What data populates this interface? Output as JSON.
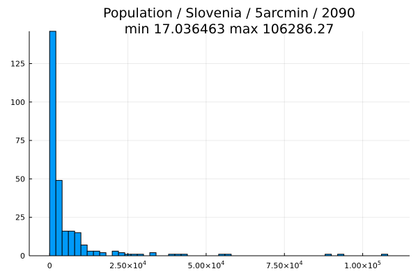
{
  "chart_data": {
    "type": "bar",
    "title": [
      "Population / Slovenia / 5arcmin / 2090",
      "min 17.036463  max 106286.27"
    ],
    "xlabel": "",
    "ylabel": "",
    "bar_color": "#009AF9",
    "grid": true,
    "legend": "none",
    "bin_width": 2000,
    "xlim": [
      -6500,
      115000
    ],
    "ylim": [
      0,
      146
    ],
    "x_ticks": [
      {
        "value": 0,
        "mantissa": "0",
        "exponent": ""
      },
      {
        "value": 25000,
        "mantissa": "2.50×10",
        "exponent": "4"
      },
      {
        "value": 50000,
        "mantissa": "5.00×10",
        "exponent": "4"
      },
      {
        "value": 75000,
        "mantissa": "7.50×10",
        "exponent": "4"
      },
      {
        "value": 100000,
        "mantissa": "1.00×10",
        "exponent": "5"
      }
    ],
    "y_ticks": [
      0,
      25,
      50,
      75,
      100,
      125
    ],
    "bins": [
      {
        "start": 0,
        "count": 146
      },
      {
        "start": 2000,
        "count": 49
      },
      {
        "start": 4000,
        "count": 16
      },
      {
        "start": 6000,
        "count": 16
      },
      {
        "start": 8000,
        "count": 15
      },
      {
        "start": 10000,
        "count": 7
      },
      {
        "start": 12000,
        "count": 3
      },
      {
        "start": 14000,
        "count": 3
      },
      {
        "start": 16000,
        "count": 2
      },
      {
        "start": 18000,
        "count": 0
      },
      {
        "start": 20000,
        "count": 3
      },
      {
        "start": 22000,
        "count": 2
      },
      {
        "start": 24000,
        "count": 1
      },
      {
        "start": 26000,
        "count": 1
      },
      {
        "start": 28000,
        "count": 1
      },
      {
        "start": 30000,
        "count": 0
      },
      {
        "start": 32000,
        "count": 2
      },
      {
        "start": 38000,
        "count": 1
      },
      {
        "start": 40000,
        "count": 1
      },
      {
        "start": 42000,
        "count": 1
      },
      {
        "start": 54000,
        "count": 1
      },
      {
        "start": 56000,
        "count": 1
      },
      {
        "start": 88000,
        "count": 1
      },
      {
        "start": 92000,
        "count": 1
      },
      {
        "start": 106000,
        "count": 1
      }
    ]
  }
}
